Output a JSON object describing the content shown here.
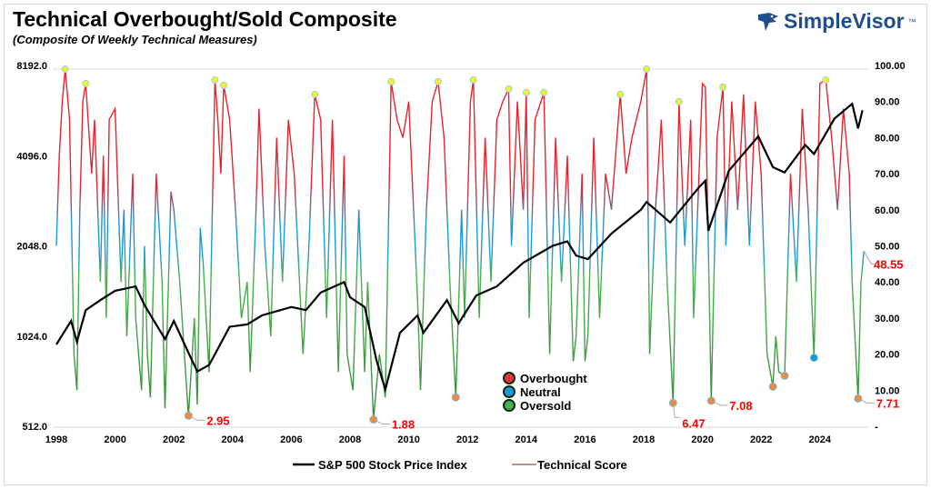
{
  "header": {
    "title": "Technical Overbought/Sold Composite",
    "subtitle": "(Composite Of Weekly Technical Measures)",
    "logo_text": "SimpleVisor",
    "logo_tm": "™"
  },
  "chart_data": {
    "type": "line",
    "title": "Technical Overbought/Sold Composite",
    "subtitle": "(Composite Of Weekly Technical Measures)",
    "x_ticks": [
      "1998",
      "2000",
      "2002",
      "2004",
      "2006",
      "2008",
      "2010",
      "2012",
      "2014",
      "2016",
      "2018",
      "2020",
      "2022",
      "2024"
    ],
    "xlim": [
      1998,
      2025.6
    ],
    "y_left": {
      "scale": "log2",
      "ticks": [
        "512.0",
        "1024.0",
        "2048.0",
        "4096.0",
        "8192.0"
      ],
      "lim": [
        512,
        8192
      ]
    },
    "y_right": {
      "scale": "linear",
      "ticks": [
        "-",
        "10.00",
        "20.00",
        "30.00",
        "40.00",
        "50.00",
        "60.00",
        "70.00",
        "80.00",
        "90.00",
        "100.00"
      ],
      "lim": [
        0,
        100
      ]
    },
    "grid": "horizontal at 8192 only",
    "legend_placement": "bottom-center",
    "zone_legend": [
      {
        "name": "Overbought",
        "color": "#e8323a"
      },
      {
        "name": "Neutral",
        "color": "#1a9ad6"
      },
      {
        "name": "Oversold",
        "color": "#4caf50"
      }
    ],
    "series": [
      {
        "name": "S&P 500 Stock Price Index",
        "axis": "left",
        "color": "#000000",
        "points": [
          [
            1998.0,
            960
          ],
          [
            1998.5,
            1150
          ],
          [
            1998.7,
            980
          ],
          [
            1999.0,
            1250
          ],
          [
            1999.5,
            1350
          ],
          [
            2000.0,
            1450
          ],
          [
            2000.7,
            1500
          ],
          [
            2001.0,
            1300
          ],
          [
            2001.7,
            1000
          ],
          [
            2002.0,
            1150
          ],
          [
            2002.5,
            900
          ],
          [
            2002.8,
            780
          ],
          [
            2003.2,
            820
          ],
          [
            2003.9,
            1100
          ],
          [
            2004.5,
            1120
          ],
          [
            2005.0,
            1200
          ],
          [
            2006.0,
            1280
          ],
          [
            2006.5,
            1250
          ],
          [
            2007.0,
            1430
          ],
          [
            2007.8,
            1550
          ],
          [
            2008.0,
            1380
          ],
          [
            2008.5,
            1280
          ],
          [
            2008.9,
            850
          ],
          [
            2009.2,
            680
          ],
          [
            2009.7,
            1050
          ],
          [
            2010.3,
            1200
          ],
          [
            2010.5,
            1050
          ],
          [
            2011.3,
            1350
          ],
          [
            2011.7,
            1130
          ],
          [
            2012.3,
            1400
          ],
          [
            2013.0,
            1500
          ],
          [
            2013.9,
            1800
          ],
          [
            2014.9,
            2050
          ],
          [
            2015.4,
            2120
          ],
          [
            2015.7,
            1900
          ],
          [
            2016.1,
            1850
          ],
          [
            2016.9,
            2250
          ],
          [
            2017.9,
            2700
          ],
          [
            2018.1,
            2870
          ],
          [
            2018.9,
            2450
          ],
          [
            2019.9,
            3230
          ],
          [
            2020.1,
            3380
          ],
          [
            2020.2,
            2300
          ],
          [
            2020.9,
            3650
          ],
          [
            2021.9,
            4750
          ],
          [
            2022.4,
            3750
          ],
          [
            2022.8,
            3600
          ],
          [
            2023.5,
            4450
          ],
          [
            2023.8,
            4150
          ],
          [
            2024.5,
            5450
          ],
          [
            2025.1,
            6100
          ],
          [
            2025.3,
            5050
          ],
          [
            2025.45,
            5800
          ]
        ]
      },
      {
        "name": "Technical Score",
        "axis": "right",
        "color": "#4a7a3a",
        "points": [
          [
            1998.0,
            50
          ],
          [
            1998.1,
            75
          ],
          [
            1998.2,
            90
          ],
          [
            1998.3,
            99
          ],
          [
            1998.45,
            85
          ],
          [
            1998.6,
            20
          ],
          [
            1998.7,
            10
          ],
          [
            1998.8,
            60
          ],
          [
            1998.9,
            90
          ],
          [
            1999.0,
            95
          ],
          [
            1999.2,
            70
          ],
          [
            1999.3,
            85
          ],
          [
            1999.5,
            40
          ],
          [
            1999.6,
            75
          ],
          [
            1999.7,
            30
          ],
          [
            1999.8,
            85
          ],
          [
            2000.0,
            88
          ],
          [
            2000.2,
            40
          ],
          [
            2000.3,
            60
          ],
          [
            2000.4,
            25
          ],
          [
            2000.6,
            70
          ],
          [
            2000.7,
            30
          ],
          [
            2000.9,
            10
          ],
          [
            2001.0,
            50
          ],
          [
            2001.1,
            20
          ],
          [
            2001.2,
            8
          ],
          [
            2001.4,
            70
          ],
          [
            2001.6,
            40
          ],
          [
            2001.7,
            5
          ],
          [
            2001.9,
            65
          ],
          [
            2002.0,
            60
          ],
          [
            2002.2,
            40
          ],
          [
            2002.4,
            15
          ],
          [
            2002.5,
            2.95
          ],
          [
            2002.7,
            30
          ],
          [
            2002.8,
            6
          ],
          [
            2002.9,
            55
          ],
          [
            2003.0,
            45
          ],
          [
            2003.2,
            15
          ],
          [
            2003.4,
            96
          ],
          [
            2003.5,
            85
          ],
          [
            2003.6,
            70
          ],
          [
            2003.7,
            94.5
          ],
          [
            2003.9,
            85
          ],
          [
            2004.1,
            60
          ],
          [
            2004.3,
            30
          ],
          [
            2004.5,
            40
          ],
          [
            2004.6,
            15
          ],
          [
            2004.8,
            60
          ],
          [
            2004.9,
            88
          ],
          [
            2005.1,
            50
          ],
          [
            2005.3,
            25
          ],
          [
            2005.5,
            80
          ],
          [
            2005.7,
            40
          ],
          [
            2005.9,
            85
          ],
          [
            2006.1,
            70
          ],
          [
            2006.4,
            20
          ],
          [
            2006.6,
            50
          ],
          [
            2006.8,
            92
          ],
          [
            2007.0,
            85
          ],
          [
            2007.2,
            30
          ],
          [
            2007.4,
            85
          ],
          [
            2007.6,
            15
          ],
          [
            2007.8,
            75
          ],
          [
            2007.9,
            20
          ],
          [
            2008.1,
            10
          ],
          [
            2008.3,
            60
          ],
          [
            2008.5,
            15
          ],
          [
            2008.6,
            40
          ],
          [
            2008.8,
            1.88
          ],
          [
            2009.0,
            20
          ],
          [
            2009.2,
            8
          ],
          [
            2009.4,
            95.5
          ],
          [
            2009.6,
            85
          ],
          [
            2009.8,
            80
          ],
          [
            2010.0,
            90
          ],
          [
            2010.3,
            35
          ],
          [
            2010.4,
            10
          ],
          [
            2010.6,
            60
          ],
          [
            2010.8,
            90
          ],
          [
            2011.0,
            95.5
          ],
          [
            2011.2,
            80
          ],
          [
            2011.4,
            40
          ],
          [
            2011.6,
            8
          ],
          [
            2011.8,
            60
          ],
          [
            2011.9,
            30
          ],
          [
            2012.1,
            90
          ],
          [
            2012.2,
            96
          ],
          [
            2012.4,
            30
          ],
          [
            2012.6,
            80
          ],
          [
            2012.8,
            40
          ],
          [
            2013.0,
            85
          ],
          [
            2013.2,
            90
          ],
          [
            2013.4,
            93.5
          ],
          [
            2013.5,
            50
          ],
          [
            2013.7,
            90
          ],
          [
            2013.9,
            60
          ],
          [
            2014.0,
            92.5
          ],
          [
            2014.1,
            30
          ],
          [
            2014.3,
            85
          ],
          [
            2014.6,
            92.5
          ],
          [
            2014.8,
            20
          ],
          [
            2015.0,
            80
          ],
          [
            2015.2,
            40
          ],
          [
            2015.4,
            75
          ],
          [
            2015.6,
            18
          ],
          [
            2015.7,
            25
          ],
          [
            2015.9,
            70
          ],
          [
            2016.0,
            18
          ],
          [
            2016.1,
            25
          ],
          [
            2016.3,
            80
          ],
          [
            2016.5,
            30
          ],
          [
            2016.7,
            70
          ],
          [
            2016.9,
            60
          ],
          [
            2017.2,
            92
          ],
          [
            2017.4,
            70
          ],
          [
            2017.6,
            80
          ],
          [
            2017.9,
            90
          ],
          [
            2018.1,
            99
          ],
          [
            2018.2,
            20
          ],
          [
            2018.4,
            60
          ],
          [
            2018.6,
            85
          ],
          [
            2018.8,
            40
          ],
          [
            2019.0,
            6.47
          ],
          [
            2019.2,
            90
          ],
          [
            2019.4,
            50
          ],
          [
            2019.6,
            85
          ],
          [
            2019.7,
            30
          ],
          [
            2020.0,
            95
          ],
          [
            2020.1,
            94
          ],
          [
            2020.3,
            7.08
          ],
          [
            2020.5,
            80
          ],
          [
            2020.7,
            94
          ],
          [
            2020.8,
            50
          ],
          [
            2021.0,
            90
          ],
          [
            2021.2,
            60
          ],
          [
            2021.4,
            92
          ],
          [
            2021.6,
            50
          ],
          [
            2021.8,
            90
          ],
          [
            2022.0,
            70
          ],
          [
            2022.2,
            20
          ],
          [
            2022.4,
            11
          ],
          [
            2022.5,
            25
          ],
          [
            2022.6,
            15
          ],
          [
            2022.8,
            14
          ],
          [
            2023.0,
            70
          ],
          [
            2023.2,
            40
          ],
          [
            2023.4,
            88
          ],
          [
            2023.6,
            60
          ],
          [
            2023.8,
            19
          ],
          [
            2024.0,
            95
          ],
          [
            2024.2,
            96
          ],
          [
            2024.4,
            80
          ],
          [
            2024.6,
            60
          ],
          [
            2024.8,
            88
          ],
          [
            2025.0,
            70
          ],
          [
            2025.1,
            40
          ],
          [
            2025.3,
            7.71
          ],
          [
            2025.4,
            40
          ],
          [
            2025.5,
            48.55
          ]
        ]
      }
    ],
    "peak_markers": [
      [
        1998.3,
        99
      ],
      [
        1999.0,
        95
      ],
      [
        2003.4,
        96
      ],
      [
        2003.7,
        94.5
      ],
      [
        2006.8,
        92
      ],
      [
        2009.4,
        95.5
      ],
      [
        2011.0,
        95.5
      ],
      [
        2012.2,
        96
      ],
      [
        2013.4,
        93.5
      ],
      [
        2014.0,
        92.5
      ],
      [
        2014.6,
        92.5
      ],
      [
        2017.2,
        92
      ],
      [
        2018.1,
        99
      ],
      [
        2019.2,
        90
      ],
      [
        2020.7,
        94
      ],
      [
        2024.2,
        96
      ]
    ],
    "trough_markers": [
      {
        "x": 2002.5,
        "y": 2.95,
        "label": "2.95",
        "color": "#f08a3c"
      },
      {
        "x": 2008.8,
        "y": 1.88,
        "label": "1.88",
        "color": "#f08a3c"
      },
      {
        "x": 2011.6,
        "y": 8,
        "label": "",
        "color": "#f08a3c"
      },
      {
        "x": 2019.0,
        "y": 6.47,
        "label": "6.47",
        "color": "#f08a3c"
      },
      {
        "x": 2020.3,
        "y": 7.08,
        "label": "7.08",
        "color": "#f08a3c"
      },
      {
        "x": 2022.4,
        "y": 11,
        "label": "",
        "color": "#f08a3c"
      },
      {
        "x": 2022.8,
        "y": 14,
        "label": "",
        "color": "#f08a3c"
      },
      {
        "x": 2023.8,
        "y": 19,
        "label": "",
        "color": "#1a9ad6"
      },
      {
        "x": 2025.3,
        "y": 7.71,
        "label": "7.71",
        "color": "#f08a3c"
      }
    ],
    "last_value_label": "48.55"
  }
}
